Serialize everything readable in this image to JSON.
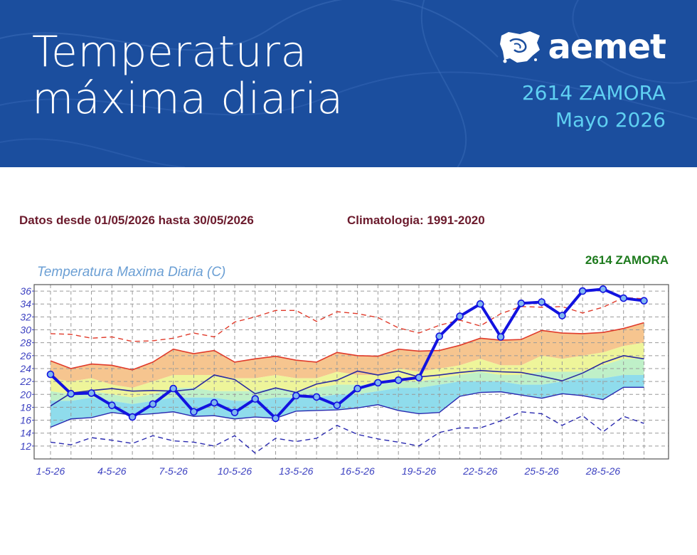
{
  "header": {
    "title_line1": "Temperatura",
    "title_line2": "máxima diaria",
    "brand": "aemet",
    "station": "2614 ZAMORA",
    "period": "Mayo 2026"
  },
  "meta": {
    "range_text": "Datos desde 01/05/2026 hasta 30/05/2026",
    "climatology_text": "Climatologia: 1991-2020"
  },
  "colors": {
    "banner": "#1b4e9e",
    "observed": "#1212e0",
    "p_high": "#e03a2a",
    "p_low": "#2a2ab0",
    "band_orange": "#f6c58f",
    "band_yellow": "#eef59a",
    "band_green": "#bff0c8",
    "band_cyan": "#8fdcec"
  },
  "chart_data": {
    "type": "line",
    "title": "Temperatura Maxima Diaria (C)",
    "station_label": "2614  ZAMORA",
    "xlabel": "",
    "ylabel": "",
    "ylim": [
      10,
      37
    ],
    "yticks": [
      12,
      14,
      16,
      18,
      20,
      22,
      24,
      26,
      28,
      30,
      32,
      34,
      36
    ],
    "x_tick_labels": [
      "1-5-26",
      "4-5-26",
      "7-5-26",
      "10-5-26",
      "13-5-26",
      "16-5-26",
      "19-5-26",
      "22-5-26",
      "25-5-26",
      "28-5-26"
    ],
    "x_tick_days": [
      1,
      4,
      7,
      10,
      13,
      16,
      19,
      22,
      25,
      28
    ],
    "days": [
      1,
      2,
      3,
      4,
      5,
      6,
      7,
      8,
      9,
      10,
      11,
      12,
      13,
      14,
      15,
      16,
      17,
      18,
      19,
      20,
      21,
      22,
      23,
      24,
      25,
      26,
      27,
      28,
      29,
      30
    ],
    "grid": true,
    "series": [
      {
        "role": "observed",
        "values": [
          23.1,
          20.1,
          20.2,
          18.3,
          16.5,
          18.5,
          20.9,
          17.3,
          18.7,
          17.2,
          19.3,
          16.3,
          19.8,
          19.6,
          18.3,
          20.9,
          21.8,
          22.2,
          22.6,
          29.0,
          32.1,
          34.0,
          28.9,
          34.1,
          34.3,
          32.2,
          36.0,
          36.3,
          34.9,
          34.5
        ]
      },
      {
        "role": "record_high",
        "values": [
          29.4,
          29.3,
          28.7,
          28.9,
          28.2,
          28.3,
          28.7,
          29.5,
          28.9,
          31.2,
          32.0,
          33.0,
          33.0,
          31.3,
          32.8,
          32.5,
          31.9,
          30.3,
          29.5,
          30.7,
          31.5,
          30.6,
          32.5,
          33.6,
          33.5,
          33.6,
          32.6,
          33.5,
          35.0,
          34.8
        ]
      },
      {
        "role": "p_high",
        "values": [
          25.2,
          24.0,
          24.7,
          24.5,
          23.8,
          25.0,
          27.0,
          26.3,
          26.8,
          25.0,
          25.5,
          25.9,
          25.3,
          25.0,
          26.5,
          26.0,
          25.9,
          27.0,
          26.7,
          26.8,
          27.6,
          28.7,
          28.4,
          28.5,
          29.9,
          29.5,
          29.4,
          29.6,
          30.2,
          31.1
        ]
      },
      {
        "role": "band_orange_low",
        "values": [
          22.5,
          22.0,
          22.5,
          21.5,
          21.0,
          22.0,
          23.0,
          23.0,
          23.0,
          22.5,
          22.5,
          23.0,
          22.5,
          22.5,
          23.5,
          23.0,
          23.0,
          24.0,
          23.5,
          24.0,
          24.5,
          25.5,
          24.5,
          24.5,
          26.0,
          25.5,
          26.0,
          26.5,
          27.5,
          28.0
        ]
      },
      {
        "role": "band_yellow_low",
        "values": [
          20.5,
          20.0,
          20.5,
          20.0,
          19.5,
          20.0,
          21.0,
          21.0,
          20.5,
          20.5,
          20.5,
          21.0,
          20.5,
          21.0,
          21.5,
          21.5,
          21.5,
          22.0,
          22.0,
          22.5,
          23.0,
          23.5,
          23.0,
          23.0,
          23.5,
          23.5,
          23.5,
          24.5,
          25.5,
          25.5
        ]
      },
      {
        "role": "mean",
        "values": [
          18.2,
          20.2,
          20.6,
          20.9,
          20.5,
          20.6,
          20.5,
          20.8,
          23.0,
          22.3,
          20.1,
          21.0,
          20.3,
          21.6,
          22.2,
          23.6,
          23.0,
          23.6,
          22.7,
          23.0,
          23.4,
          23.7,
          23.5,
          23.4,
          22.8,
          22.1,
          23.3,
          24.9,
          26.0,
          25.5
        ]
      },
      {
        "role": "band_cyan_high",
        "values": [
          19.0,
          19.0,
          19.5,
          19.0,
          18.5,
          19.0,
          19.5,
          19.5,
          19.5,
          19.0,
          19.0,
          19.5,
          19.5,
          19.5,
          20.0,
          20.0,
          20.5,
          21.0,
          21.0,
          21.5,
          22.0,
          22.0,
          22.0,
          21.5,
          21.5,
          22.0,
          22.5,
          22.5,
          23.0,
          23.0
        ]
      },
      {
        "role": "p_low",
        "values": [
          14.9,
          16.2,
          16.4,
          17.2,
          16.8,
          17.0,
          17.3,
          16.6,
          16.7,
          16.2,
          16.5,
          16.3,
          17.4,
          17.5,
          17.6,
          17.9,
          18.4,
          17.5,
          17.0,
          17.2,
          19.7,
          20.3,
          20.4,
          19.9,
          19.4,
          20.1,
          19.8,
          19.2,
          21.1,
          21.1
        ]
      },
      {
        "role": "record_low",
        "values": [
          12.6,
          12.2,
          13.3,
          12.9,
          12.4,
          13.6,
          12.8,
          12.6,
          12.0,
          13.6,
          10.9,
          13.2,
          12.7,
          13.2,
          15.2,
          13.8,
          13.1,
          12.6,
          12.0,
          14.1,
          14.8,
          14.8,
          15.9,
          17.3,
          17.0,
          15.2,
          16.7,
          14.2,
          16.6,
          15.5
        ]
      }
    ]
  }
}
